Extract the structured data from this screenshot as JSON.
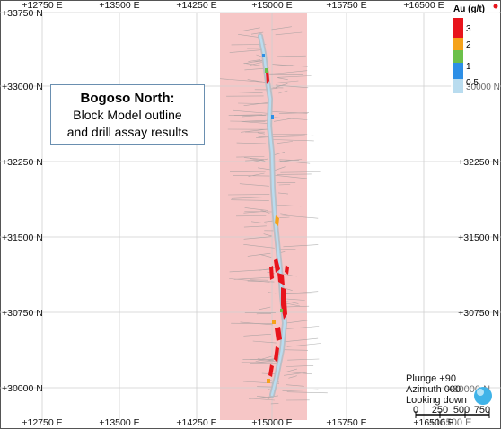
{
  "map": {
    "title_line1": "Bogoso North:",
    "title_line2": "Block Model outline",
    "title_line3": "and drill assay results",
    "grid": {
      "easting_labels": [
        "+12750 E",
        "+13500 E",
        "+14250 E",
        "+15000 E",
        "+15750 E",
        "+16500 E"
      ],
      "northing_labels": [
        "+33750 N",
        "+33000 N",
        "+32250 N",
        "+31500 N",
        "+30750 N",
        "+30000 N"
      ]
    },
    "legend": {
      "title": "Au (g/t)",
      "entries": [
        {
          "label": "3",
          "color": "#e8141c"
        },
        {
          "label": "2",
          "color": "#f5a21b"
        },
        {
          "label": "1",
          "color": "#6cc04a"
        },
        {
          "label": "0.5",
          "color": "#2d8fe6"
        },
        {
          "label": "",
          "color": "#b9dcef"
        }
      ],
      "overlap_text": "30000 N"
    },
    "view": {
      "plunge": "Plunge +90",
      "azimuth": "Azimuth 000",
      "looking": "Looking down",
      "overlap_label": "+30000 N",
      "overlap_easting": "+16500 E"
    },
    "scale": {
      "labels": [
        "0",
        "250",
        "500",
        "750"
      ]
    },
    "colors": {
      "block_model": "#f6c6c6",
      "grid_line": "#c8c8c8"
    }
  }
}
